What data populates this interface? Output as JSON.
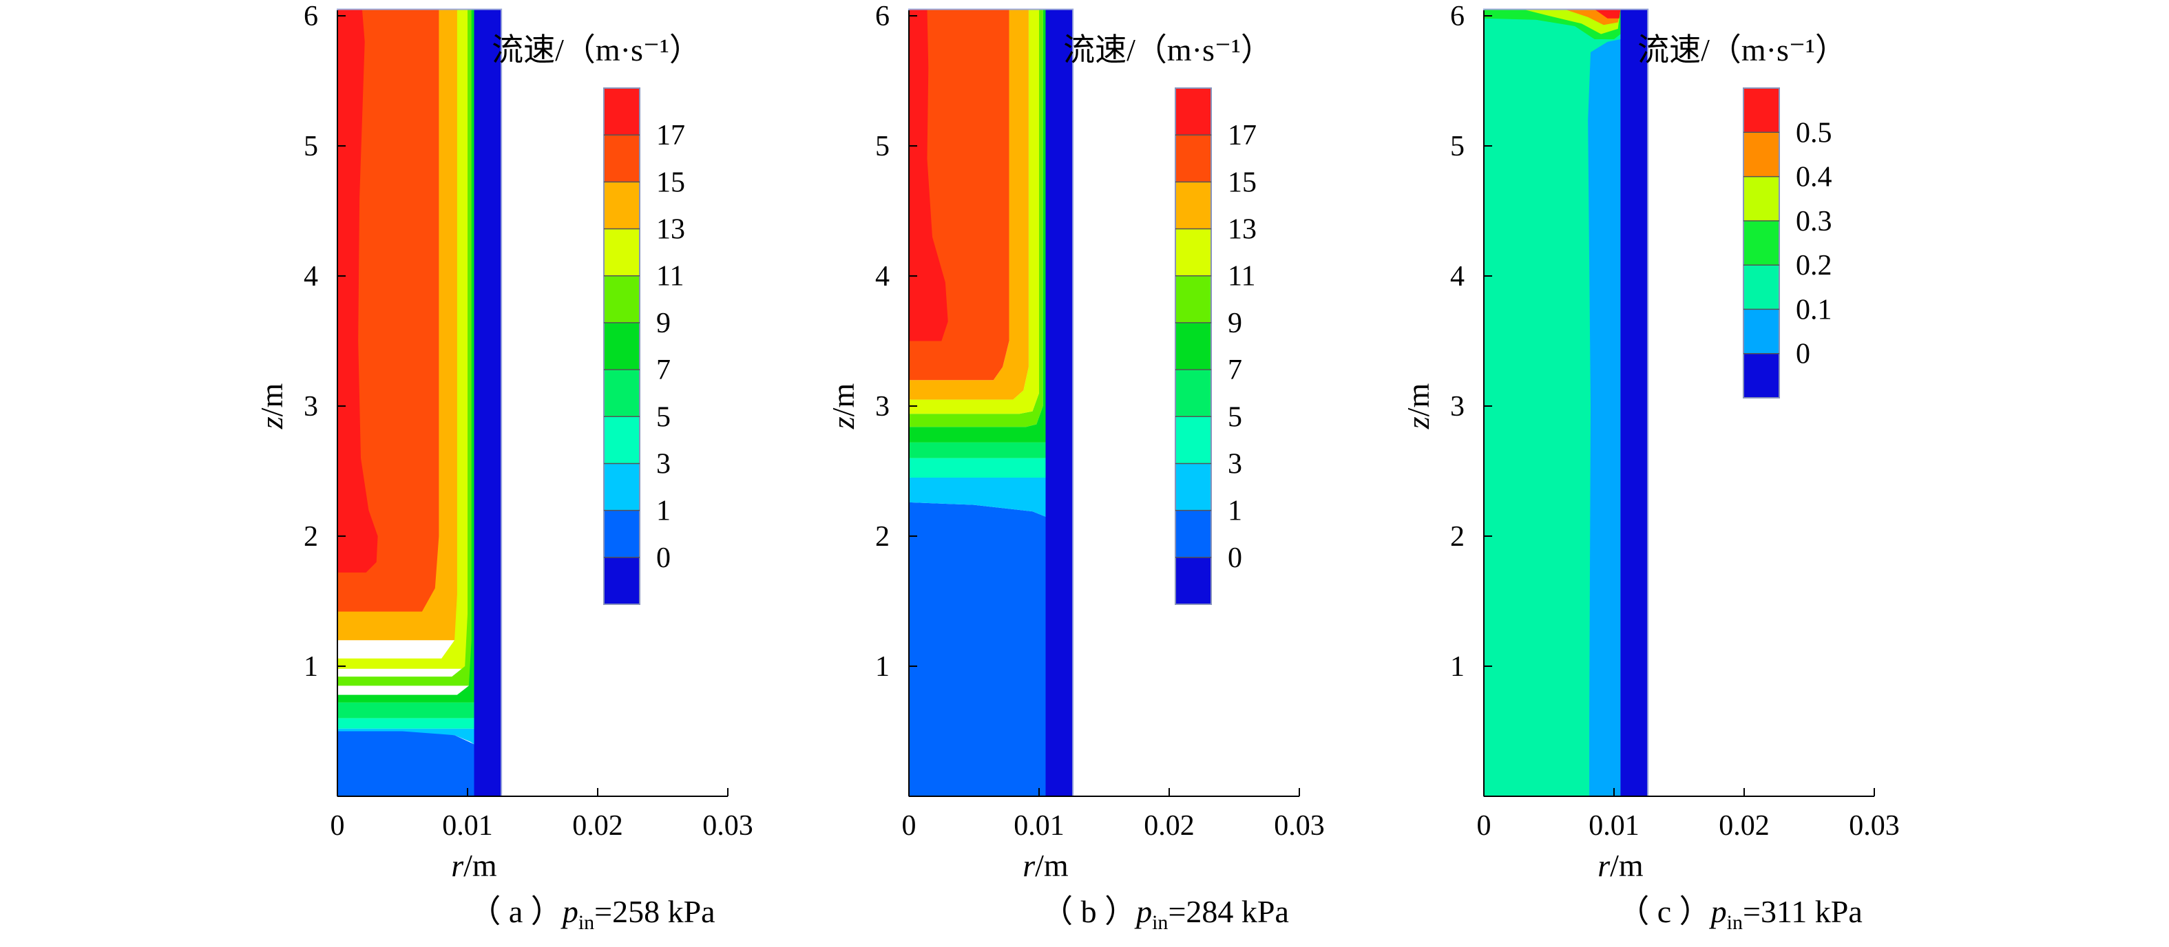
{
  "chart_data": [
    {
      "type": "heatmap",
      "caption": {
        "open": "（ a ）",
        "var": "p",
        "sub": "in",
        "value": "=258 kPa"
      },
      "xlabel": {
        "var": "r",
        "unit": "/m"
      },
      "ylabel": {
        "var": "z",
        "unit": "/m"
      },
      "xlim": [
        0,
        0.03
      ],
      "ylim": [
        0,
        6
      ],
      "xticks": [
        {
          "v": 0,
          "label": "0"
        },
        {
          "v": 0.01,
          "label": "0.01"
        },
        {
          "v": 0.02,
          "label": "0.02"
        },
        {
          "v": 0.03,
          "label": "0.03"
        }
      ],
      "yticks": [
        {
          "v": 1,
          "label": "1"
        },
        {
          "v": 2,
          "label": "2"
        },
        {
          "v": 3,
          "label": "3"
        },
        {
          "v": 4,
          "label": "4"
        },
        {
          "v": 5,
          "label": "5"
        },
        {
          "v": 6,
          "label": "6"
        }
      ],
      "colorbar": {
        "title": "流速/（m·s⁻¹）",
        "levels": [
          "17",
          "15",
          "13",
          "11",
          "9",
          "7",
          "5",
          "3",
          "1",
          "0"
        ],
        "colors": [
          "#ff1a1a",
          "#ff4d0a",
          "#ffb300",
          "#d9ff00",
          "#66ee00",
          "#00dd22",
          "#00ee66",
          "#00ffbb",
          "#00c8ff",
          "#0066ff",
          "#0a0adc"
        ]
      },
      "regions": [
        {
          "color": "#0a0adc",
          "pts": [
            [
              0.0105,
              0
            ],
            [
              0.0126,
              0
            ],
            [
              0.0126,
              6.05
            ],
            [
              0.0105,
              6.05
            ]
          ]
        },
        {
          "color": "#ff4d0a",
          "pts": [
            [
              0,
              1.38
            ],
            [
              0.0105,
              1.38
            ],
            [
              0.0105,
              6.05
            ],
            [
              0,
              6.05
            ]
          ]
        },
        {
          "color": "#ff1a1a",
          "pts": [
            [
              0,
              1.72
            ],
            [
              0.0022,
              1.72
            ],
            [
              0.003,
              1.8
            ],
            [
              0.0031,
              2.0
            ],
            [
              0.0024,
              2.2
            ],
            [
              0.0018,
              2.6
            ],
            [
              0.0016,
              3.5
            ],
            [
              0.0017,
              4.6
            ],
            [
              0.0021,
              5.8
            ],
            [
              0.0019,
              6.05
            ],
            [
              0,
              6.05
            ]
          ]
        },
        {
          "color": "#ffb300",
          "pts": [
            [
              0.0078,
              6.05
            ],
            [
              0.0078,
              2.0
            ],
            [
              0.0075,
              1.6
            ],
            [
              0.0065,
              1.42
            ],
            [
              0,
              1.42
            ],
            [
              0,
              1.2
            ],
            [
              0.0105,
              1.2
            ],
            [
              0.0105,
              6.05
            ]
          ]
        },
        {
          "color": "#d9ff00",
          "pts": [
            [
              0.0092,
              6.05
            ],
            [
              0.0092,
              1.55
            ],
            [
              0.009,
              1.2
            ],
            [
              0.008,
              1.06
            ],
            [
              0,
              1.06
            ],
            [
              0,
              0.98
            ],
            [
              0.0105,
              0.98
            ],
            [
              0.0105,
              6.05
            ]
          ]
        },
        {
          "color": "#66ee00",
          "pts": [
            [
              0.01,
              6.05
            ],
            [
              0.01,
              1.4
            ],
            [
              0.0098,
              1.0
            ],
            [
              0.0088,
              0.92
            ],
            [
              0,
              0.92
            ],
            [
              0,
              0.85
            ],
            [
              0.0105,
              0.85
            ],
            [
              0.0105,
              6.05
            ]
          ]
        },
        {
          "color": "#00dd22",
          "pts": [
            [
              0.0103,
              6.05
            ],
            [
              0.0103,
              1.2
            ],
            [
              0.0101,
              0.85
            ],
            [
              0.0092,
              0.78
            ],
            [
              0,
              0.78
            ],
            [
              0,
              0.72
            ],
            [
              0.0105,
              0.72
            ],
            [
              0.0105,
              6.05
            ]
          ]
        },
        {
          "color": "#00ee66",
          "pts": [
            [
              0,
              0.72
            ],
            [
              0.0105,
              0.72
            ],
            [
              0.0105,
              0.6
            ],
            [
              0,
              0.6
            ]
          ]
        },
        {
          "color": "#00ffbb",
          "pts": [
            [
              0,
              0.6
            ],
            [
              0.0105,
              0.6
            ],
            [
              0.0105,
              0.52
            ],
            [
              0,
              0.52
            ]
          ]
        },
        {
          "color": "#00c8ff",
          "pts": [
            [
              0,
              0.52
            ],
            [
              0.0105,
              0.52
            ],
            [
              0.0105,
              0.4
            ],
            [
              0.0102,
              0.42
            ],
            [
              0.009,
              0.47
            ],
            [
              0,
              0.5
            ]
          ]
        },
        {
          "color": "#0066ff",
          "pts": [
            [
              0,
              0
            ],
            [
              0.0105,
              0
            ],
            [
              0.0105,
              0.4
            ],
            [
              0.009,
              0.47
            ],
            [
              0.005,
              0.5
            ],
            [
              0,
              0.5
            ]
          ]
        }
      ]
    },
    {
      "type": "heatmap",
      "caption": {
        "open": "（ b ）",
        "var": "p",
        "sub": "in",
        "value": "=284 kPa"
      },
      "xlabel": {
        "var": "r",
        "unit": "/m"
      },
      "ylabel": {
        "var": "z",
        "unit": "/m"
      },
      "xlim": [
        0,
        0.03
      ],
      "ylim": [
        0,
        6
      ],
      "xticks": [
        {
          "v": 0,
          "label": "0"
        },
        {
          "v": 0.01,
          "label": "0.01"
        },
        {
          "v": 0.02,
          "label": "0.02"
        },
        {
          "v": 0.03,
          "label": "0.03"
        }
      ],
      "yticks": [
        {
          "v": 1,
          "label": "1"
        },
        {
          "v": 2,
          "label": "2"
        },
        {
          "v": 3,
          "label": "3"
        },
        {
          "v": 4,
          "label": "4"
        },
        {
          "v": 5,
          "label": "5"
        },
        {
          "v": 6,
          "label": "6"
        }
      ],
      "colorbar": {
        "title": "流速/（m·s⁻¹）",
        "levels": [
          "17",
          "15",
          "13",
          "11",
          "9",
          "7",
          "5",
          "3",
          "1",
          "0"
        ],
        "colors": [
          "#ff1a1a",
          "#ff4d0a",
          "#ffb300",
          "#d9ff00",
          "#66ee00",
          "#00dd22",
          "#00ee66",
          "#00ffbb",
          "#00c8ff",
          "#0066ff",
          "#0a0adc"
        ]
      },
      "regions": [
        {
          "color": "#0a0adc",
          "pts": [
            [
              0.0105,
              0
            ],
            [
              0.0126,
              0
            ],
            [
              0.0126,
              6.05
            ],
            [
              0.0105,
              6.05
            ]
          ]
        },
        {
          "color": "#0066ff",
          "pts": [
            [
              0,
              0
            ],
            [
              0.0105,
              0
            ],
            [
              0.0105,
              2.15
            ],
            [
              0.0095,
              2.19
            ],
            [
              0.005,
              2.24
            ],
            [
              0,
              2.26
            ]
          ]
        },
        {
          "color": "#00c8ff",
          "pts": [
            [
              0,
              2.26
            ],
            [
              0.005,
              2.24
            ],
            [
              0.0095,
              2.19
            ],
            [
              0.0105,
              2.15
            ],
            [
              0.0105,
              2.45
            ],
            [
              0,
              2.45
            ]
          ]
        },
        {
          "color": "#00ffbb",
          "pts": [
            [
              0,
              2.45
            ],
            [
              0.0105,
              2.45
            ],
            [
              0.0105,
              2.6
            ],
            [
              0,
              2.6
            ]
          ]
        },
        {
          "color": "#00ee66",
          "pts": [
            [
              0,
              2.6
            ],
            [
              0.0105,
              2.6
            ],
            [
              0.0105,
              2.72
            ],
            [
              0,
              2.72
            ]
          ]
        },
        {
          "color": "#00dd22",
          "pts": [
            [
              0,
              2.72
            ],
            [
              0.0105,
              2.72
            ],
            [
              0.0105,
              6.05
            ],
            [
              0.0103,
              6.05
            ],
            [
              0.0103,
              3.0
            ],
            [
              0.0098,
              2.86
            ],
            [
              0.009,
              2.84
            ],
            [
              0,
              2.84
            ]
          ]
        },
        {
          "color": "#66ee00",
          "pts": [
            [
              0,
              2.84
            ],
            [
              0.009,
              2.84
            ],
            [
              0.0098,
              2.86
            ],
            [
              0.0103,
              3.0
            ],
            [
              0.0103,
              6.05
            ],
            [
              0.01,
              6.05
            ],
            [
              0.01,
              3.1
            ],
            [
              0.0095,
              2.96
            ],
            [
              0.0085,
              2.94
            ],
            [
              0,
              2.94
            ]
          ]
        },
        {
          "color": "#d9ff00",
          "pts": [
            [
              0,
              2.94
            ],
            [
              0.0085,
              2.94
            ],
            [
              0.0095,
              2.96
            ],
            [
              0.01,
              3.1
            ],
            [
              0.01,
              6.05
            ],
            [
              0.0092,
              6.05
            ],
            [
              0.0092,
              3.3
            ],
            [
              0.0088,
              3.12
            ],
            [
              0.008,
              3.05
            ],
            [
              0,
              3.05
            ]
          ]
        },
        {
          "color": "#ffb300",
          "pts": [
            [
              0,
              3.05
            ],
            [
              0.008,
              3.05
            ],
            [
              0.0088,
              3.12
            ],
            [
              0.0092,
              3.3
            ],
            [
              0.0092,
              6.05
            ],
            [
              0.0077,
              6.05
            ],
            [
              0.0077,
              3.5
            ],
            [
              0.0072,
              3.3
            ],
            [
              0.0065,
              3.2
            ],
            [
              0,
              3.2
            ]
          ]
        },
        {
          "color": "#ff4d0a",
          "pts": [
            [
              0,
              3.2
            ],
            [
              0.0065,
              3.2
            ],
            [
              0.0072,
              3.3
            ],
            [
              0.0077,
              3.5
            ],
            [
              0.0077,
              6.05
            ],
            [
              0,
              6.05
            ]
          ]
        },
        {
          "color": "#ff1a1a",
          "pts": [
            [
              0,
              3.5
            ],
            [
              0.0025,
              3.5
            ],
            [
              0.003,
              3.65
            ],
            [
              0.0028,
              3.95
            ],
            [
              0.0018,
              4.3
            ],
            [
              0.0014,
              4.9
            ],
            [
              0.0015,
              5.6
            ],
            [
              0.0014,
              6.05
            ],
            [
              0,
              6.05
            ]
          ]
        }
      ]
    },
    {
      "type": "heatmap",
      "caption": {
        "open": "（ c ）",
        "var": "p",
        "sub": "in",
        "value": "=311 kPa"
      },
      "xlabel": {
        "var": "r",
        "unit": "/m"
      },
      "ylabel": {
        "var": "z",
        "unit": "/m"
      },
      "xlim": [
        0,
        0.03
      ],
      "ylim": [
        0,
        6
      ],
      "xticks": [
        {
          "v": 0,
          "label": "0"
        },
        {
          "v": 0.01,
          "label": "0.01"
        },
        {
          "v": 0.02,
          "label": "0.02"
        },
        {
          "v": 0.03,
          "label": "0.03"
        }
      ],
      "yticks": [
        {
          "v": 1,
          "label": "1"
        },
        {
          "v": 2,
          "label": "2"
        },
        {
          "v": 3,
          "label": "3"
        },
        {
          "v": 4,
          "label": "4"
        },
        {
          "v": 5,
          "label": "5"
        },
        {
          "v": 6,
          "label": "6"
        }
      ],
      "colorbar": {
        "title": "流速/（m·s⁻¹）",
        "levels": [
          "0.5",
          "0.4",
          "0.3",
          "0.2",
          "0.1",
          "0"
        ],
        "colors": [
          "#ff1a1a",
          "#ff8c00",
          "#c0ff00",
          "#11ee33",
          "#00f5a5",
          "#00a8ff",
          "#0a0adc"
        ]
      },
      "regions": [
        {
          "color": "#00f5a5",
          "pts": [
            [
              0,
              0
            ],
            [
              0.0105,
              0
            ],
            [
              0.0105,
              6.05
            ],
            [
              0,
              6.05
            ]
          ]
        },
        {
          "color": "#00a8ff",
          "pts": [
            [
              0.0081,
              0
            ],
            [
              0.0105,
              0
            ],
            [
              0.0105,
              5.82
            ],
            [
              0.0095,
              5.8
            ],
            [
              0.0082,
              5.72
            ],
            [
              0.008,
              5.2
            ],
            [
              0.0082,
              3.0
            ],
            [
              0.0081,
              0.6
            ]
          ]
        },
        {
          "color": "#0a0adc",
          "pts": [
            [
              0.0105,
              0
            ],
            [
              0.0126,
              0
            ],
            [
              0.0126,
              6.05
            ],
            [
              0.0105,
              6.05
            ]
          ]
        },
        {
          "color": "#11ee33",
          "pts": [
            [
              0,
              6.05
            ],
            [
              0,
              5.98
            ],
            [
              0.004,
              5.97
            ],
            [
              0.007,
              5.92
            ],
            [
              0.0085,
              5.82
            ],
            [
              0.01,
              5.82
            ],
            [
              0.0105,
              5.86
            ],
            [
              0.0105,
              6.05
            ]
          ]
        },
        {
          "color": "#c0ff00",
          "pts": [
            [
              0.003,
              6.05
            ],
            [
              0.005,
              6.0
            ],
            [
              0.0075,
              5.94
            ],
            [
              0.009,
              5.86
            ],
            [
              0.0103,
              5.9
            ],
            [
              0.0105,
              6.05
            ]
          ]
        },
        {
          "color": "#ff8c00",
          "pts": [
            [
              0.0062,
              6.05
            ],
            [
              0.008,
              5.99
            ],
            [
              0.0092,
              5.93
            ],
            [
              0.0103,
              5.95
            ],
            [
              0.0105,
              6.05
            ]
          ]
        },
        {
          "color": "#ff1a1a",
          "pts": [
            [
              0.0085,
              6.05
            ],
            [
              0.0095,
              5.98
            ],
            [
              0.0104,
              5.98
            ],
            [
              0.0105,
              6.05
            ]
          ]
        }
      ]
    }
  ]
}
